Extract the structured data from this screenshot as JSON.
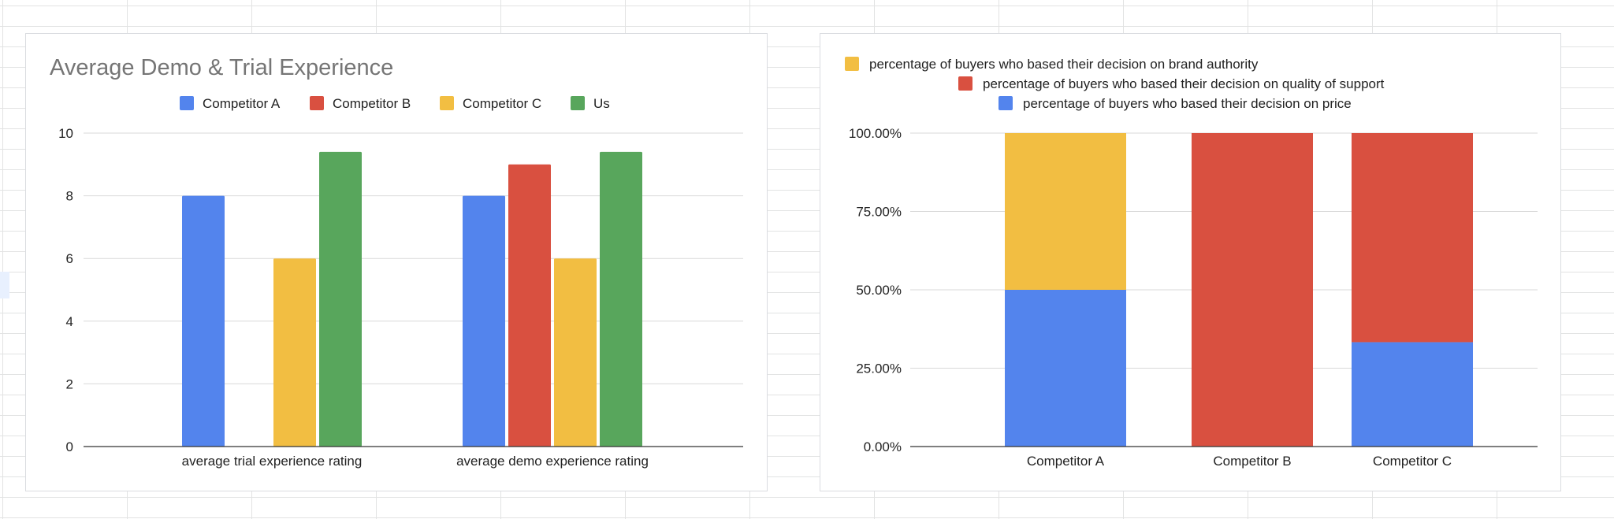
{
  "chart_data": [
    {
      "type": "bar",
      "title": "Average Demo & Trial Experience",
      "categories": [
        "average trial experience rating",
        "average demo experience rating"
      ],
      "series": [
        {
          "name": "Competitor A",
          "color": "#5384ed",
          "values": [
            8,
            8
          ]
        },
        {
          "name": "Competitor B",
          "color": "#d95040",
          "values": [
            0,
            9
          ]
        },
        {
          "name": "Competitor C",
          "color": "#f2be42",
          "values": [
            6,
            6
          ]
        },
        {
          "name": "Us",
          "color": "#58a65c",
          "values": [
            9.4,
            9.4
          ]
        }
      ],
      "ylim": [
        0,
        10
      ],
      "yticks": [
        "0",
        "2",
        "4",
        "6",
        "8",
        "10"
      ],
      "grid": true,
      "legend": "top"
    },
    {
      "type": "bar",
      "stacked": true,
      "categories": [
        "Competitor A",
        "Competitor B",
        "Competitor C"
      ],
      "series": [
        {
          "name": "percentage of buyers who based their decision on price",
          "color": "#5384ed",
          "values": [
            50,
            0,
            33.3
          ]
        },
        {
          "name": "percentage of buyers who based their decision on quality of support",
          "color": "#d95040",
          "values": [
            0,
            100,
            66.7
          ]
        },
        {
          "name": "percentage of buyers who based their decision on brand authority",
          "color": "#f2be42",
          "values": [
            50,
            0,
            0
          ]
        }
      ],
      "ylim": [
        0,
        100
      ],
      "yticks": [
        "0.00%",
        "25.00%",
        "50.00%",
        "75.00%",
        "100.00%"
      ],
      "grid": true,
      "legend": "top"
    }
  ]
}
